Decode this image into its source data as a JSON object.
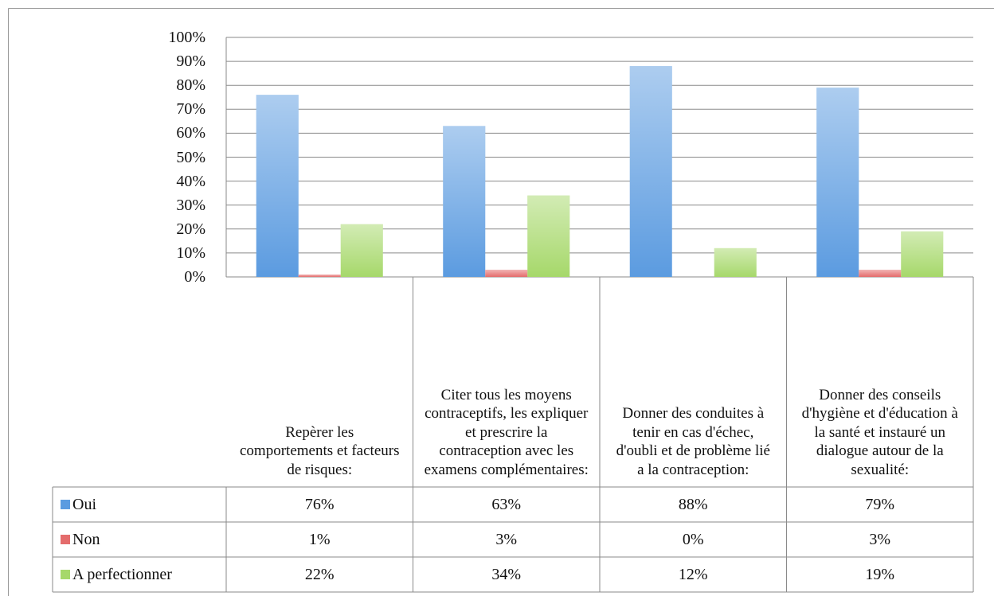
{
  "chart_data": {
    "type": "bar",
    "categories": [
      "Repèrer les comportements et facteurs de risques:",
      "Citer tous les moyens contraceptifs, les expliquer et prescrire la contraception avec les examens complémentaires:",
      "Donner des conduites à tenir en cas d'échec, d'oubli et de problème lié a la contraception:",
      "Donner des conseils d'hygiène et d'éducation à la santé et instauré un dialogue autour de la sexualité:"
    ],
    "series": [
      {
        "name": "Oui",
        "color": "#5b9be0",
        "values": [
          76,
          63,
          88,
          79
        ],
        "value_labels": [
          "76%",
          "63%",
          "88%",
          "79%"
        ]
      },
      {
        "name": "Non",
        "color": "#e46c6c",
        "values": [
          1,
          3,
          0,
          3
        ],
        "value_labels": [
          "1%",
          "3%",
          "0%",
          "3%"
        ]
      },
      {
        "name": "A perfectionner",
        "color": "#a6d86a",
        "values": [
          22,
          34,
          12,
          19
        ],
        "value_labels": [
          "22%",
          "34%",
          "12%",
          "19%"
        ]
      }
    ],
    "ylim": [
      0,
      100
    ],
    "yticks": [
      {
        "value": 0,
        "label": "0%"
      },
      {
        "value": 10,
        "label": "10%"
      },
      {
        "value": 20,
        "label": "20%"
      },
      {
        "value": 30,
        "label": "30%"
      },
      {
        "value": 40,
        "label": "40%"
      },
      {
        "value": 50,
        "label": "50%"
      },
      {
        "value": 60,
        "label": "60%"
      },
      {
        "value": 70,
        "label": "70%"
      },
      {
        "value": 80,
        "label": "80%"
      },
      {
        "value": 90,
        "label": "90%"
      },
      {
        "value": 100,
        "label": "100%"
      }
    ],
    "grid": true
  }
}
